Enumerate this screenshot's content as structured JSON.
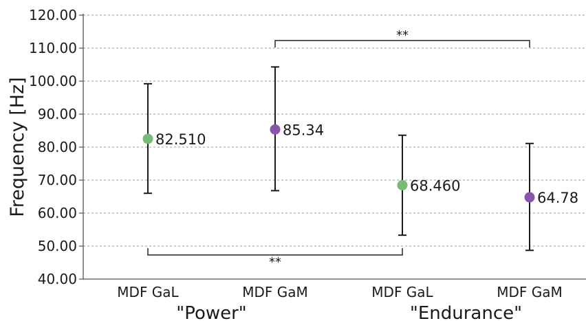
{
  "chart_data": {
    "type": "scatter",
    "title": "",
    "xlabel": "",
    "ylabel": "Frequency [Hz]",
    "ylim": [
      40,
      120
    ],
    "yticks": [
      "40.00",
      "50.00",
      "60.00",
      "70.00",
      "80.00",
      "90.00",
      "100.00",
      "110.00",
      "120.00"
    ],
    "grid": "horizontal dashed",
    "categories": [
      "MDF GaL",
      "MDF GaM",
      "MDF GaL",
      "MDF GaM"
    ],
    "groups": [
      {
        "label": "\"Power\"",
        "categories": [
          0,
          1
        ]
      },
      {
        "label": "\"Endurance\"",
        "categories": [
          2,
          3
        ]
      }
    ],
    "points": [
      {
        "category": "MDF GaL",
        "group": "Power",
        "value": 82.51,
        "label": "82.510",
        "err_low": 66.0,
        "err_high": 99.2,
        "color": "#77bb77"
      },
      {
        "category": "MDF GaM",
        "group": "Power",
        "value": 85.34,
        "label": "85.34",
        "err_low": 66.8,
        "err_high": 104.3,
        "color": "#8855aa"
      },
      {
        "category": "MDF GaL",
        "group": "Endurance",
        "value": 68.46,
        "label": "68.460",
        "err_low": 53.3,
        "err_high": 83.6,
        "color": "#77bb77"
      },
      {
        "category": "MDF GaM",
        "group": "Endurance",
        "value": 64.78,
        "label": "64.78",
        "err_low": 48.7,
        "err_high": 81.1,
        "color": "#8855aa"
      }
    ],
    "significance": [
      {
        "from": 1,
        "to": 3,
        "y": 112.3,
        "label": "**",
        "side": "top"
      },
      {
        "from": 0,
        "to": 2,
        "y": 47.3,
        "label": "**",
        "side": "bottom"
      }
    ]
  }
}
